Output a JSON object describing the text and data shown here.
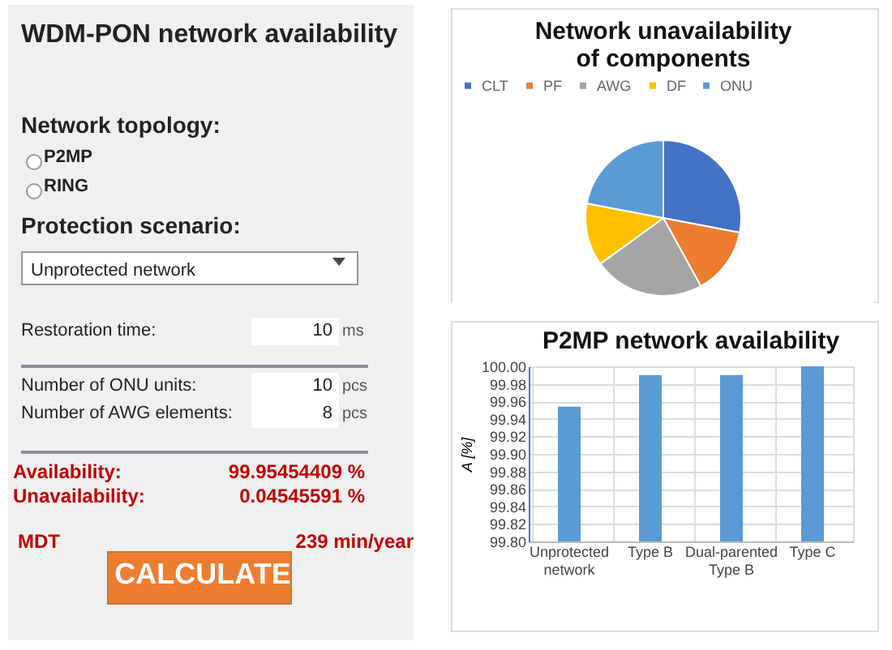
{
  "chart_data": [
    {
      "type": "other",
      "title": "WDM-PON network availability",
      "annotations": [
        "Network topology:",
        "P2MP",
        "RING",
        "Protection scenario:",
        "Unprotected network",
        "Restoration time:",
        "10",
        "ms",
        "Number of ONU units:",
        "10",
        "pcs",
        "Number of AWG elements:",
        "8",
        "pcs",
        "Availability:",
        "99.95454409 %",
        "Unavailability:",
        "0.04545591 %",
        "MDT",
        "239 min/year",
        "CALCULATE"
      ]
    },
    {
      "type": "pie",
      "title": "Network unavailability of components",
      "categories": [
        "CLT",
        "PF",
        "AWG",
        "DF",
        "ONU"
      ],
      "values": [
        28,
        14,
        23,
        13,
        22
      ],
      "colors": [
        "#4472c4",
        "#ed7d31",
        "#a5a5a5",
        "#ffc000",
        "#5b9bd5"
      ],
      "legend": "top"
    },
    {
      "type": "bar",
      "title": "P2MP network availability",
      "ylabel": "A [%]",
      "categories": [
        "Unprotected network",
        "Type B",
        "Dual-parented Type B",
        "Type C"
      ],
      "values": [
        99.954,
        99.99,
        99.99,
        100.0
      ],
      "color": "#5b9bd5",
      "ylim": [
        99.8,
        100.0
      ],
      "yticks": [
        {
          "value": 99.8,
          "label": "99.80"
        },
        {
          "value": 99.82,
          "label": "99.82"
        },
        {
          "value": 99.84,
          "label": "99.84"
        },
        {
          "value": 99.86,
          "label": "99.86"
        },
        {
          "value": 99.88,
          "label": "99.88"
        },
        {
          "value": 99.9,
          "label": "99.90"
        },
        {
          "value": 99.92,
          "label": "99.92"
        },
        {
          "value": 99.94,
          "label": "99.94"
        },
        {
          "value": 99.96,
          "label": "99.96"
        },
        {
          "value": 99.98,
          "label": "99.98"
        },
        {
          "value": 100.0,
          "label": "100.00"
        }
      ],
      "grid": true
    }
  ]
}
